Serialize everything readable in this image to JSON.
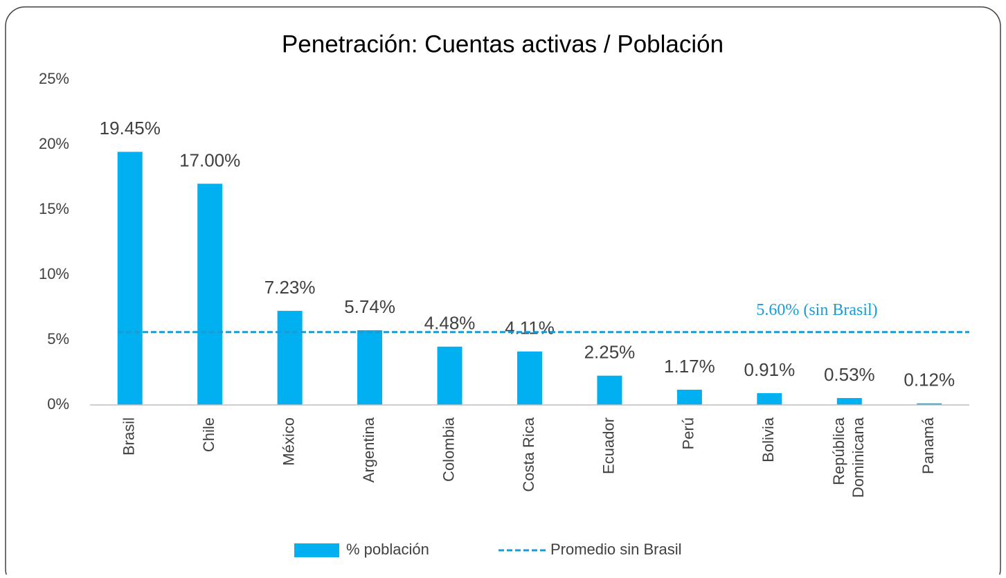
{
  "chart_data": {
    "type": "bar",
    "title": "Penetración: Cuentas activas / Población",
    "categories": [
      "Brasil",
      "Chile",
      "México",
      "Argentina",
      "Colombia",
      "Costa Rica",
      "Ecuador",
      "Perú",
      "Bolivia",
      "República Dominicana",
      "Panamá"
    ],
    "series": [
      {
        "name": "% población",
        "color": "#00b0f0",
        "values": [
          19.45,
          17.0,
          7.23,
          5.74,
          4.48,
          4.11,
          2.25,
          1.17,
          0.91,
          0.53,
          0.12
        ],
        "value_labels": [
          "19.45%",
          "17.00%",
          "7.23%",
          "5.74%",
          "4.48%",
          "4.11%",
          "2.25%",
          "1.17%",
          "0.91%",
          "0.53%",
          "0.12%"
        ]
      }
    ],
    "reference_line": {
      "name": "Promedio sin Brasil",
      "color": "#1a9bd7",
      "value": 5.6,
      "label": "5.60% (sin Brasil)"
    },
    "ylim": [
      0,
      25
    ],
    "yticks": [
      {
        "value": 0,
        "label": "0%"
      },
      {
        "value": 5,
        "label": "5%"
      },
      {
        "value": 10,
        "label": "10%"
      },
      {
        "value": 15,
        "label": "15%"
      },
      {
        "value": 20,
        "label": "20%"
      },
      {
        "value": 25,
        "label": "25%"
      }
    ],
    "grid": false,
    "legend": "bottom"
  }
}
